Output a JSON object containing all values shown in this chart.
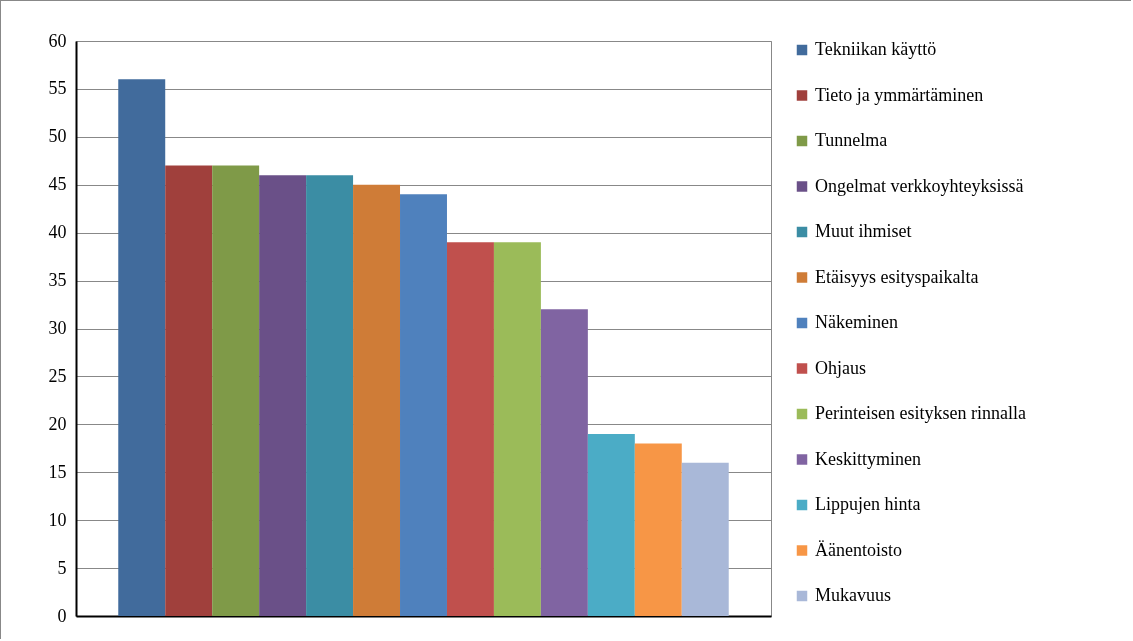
{
  "chart_data": {
    "type": "bar",
    "categories": [
      null
    ],
    "series": [
      {
        "name": "Tekniikan käyttö",
        "color": "#416b9c",
        "values": [
          56
        ]
      },
      {
        "name": "Tieto ja ymmärtäminen",
        "color": "#a0403c",
        "values": [
          47
        ]
      },
      {
        "name": "Tunnelma",
        "color": "#7f9a48",
        "values": [
          47
        ]
      },
      {
        "name": "Ongelmat verkkoyhteyksissä",
        "color": "#6a5088",
        "values": [
          46
        ]
      },
      {
        "name": "Muut ihmiset",
        "color": "#3b8da4",
        "values": [
          46
        ]
      },
      {
        "name": "Etäisyys esityspaikalta",
        "color": "#cf7c37",
        "values": [
          45
        ]
      },
      {
        "name": "Näkeminen",
        "color": "#4f81bd",
        "values": [
          44
        ]
      },
      {
        "name": "Ohjaus",
        "color": "#c0504d",
        "values": [
          39
        ]
      },
      {
        "name": "Perinteisen esityksen rinnalla",
        "color": "#9bbb59",
        "values": [
          39
        ]
      },
      {
        "name": "Keskittyminen",
        "color": "#8064a2",
        "values": [
          32
        ]
      },
      {
        "name": "Lippujen hinta",
        "color": "#4bacc6",
        "values": [
          19
        ]
      },
      {
        "name": "Äänentoisto",
        "color": "#f79646",
        "values": [
          18
        ]
      },
      {
        "name": "Mukavuus",
        "color": "#a9b8d8",
        "values": [
          16
        ]
      }
    ],
    "ylim": [
      0,
      60
    ],
    "yticks": [
      0,
      5,
      10,
      15,
      20,
      25,
      30,
      35,
      40,
      45,
      50,
      55,
      60
    ],
    "grid": "y",
    "legend": "right"
  }
}
